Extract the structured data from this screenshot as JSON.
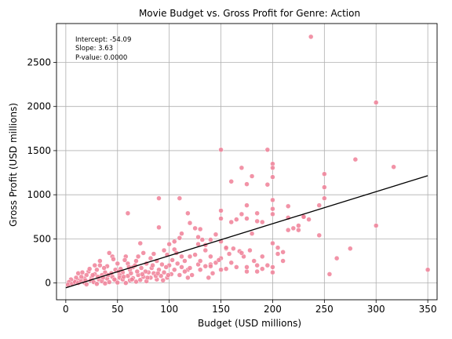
{
  "chart_data": {
    "type": "scatter",
    "title": "Movie Budget vs. Gross Profit for Genre: Action",
    "xlabel": "Budget (USD millions)",
    "ylabel": "Gross Profit (USD millions)",
    "xlim": [
      -9,
      359
    ],
    "ylim": [
      -190,
      2940
    ],
    "xticks": [
      0,
      50,
      100,
      150,
      200,
      250,
      300,
      350
    ],
    "yticks": [
      0,
      500,
      1000,
      1500,
      2000,
      2500
    ],
    "grid": true,
    "colors": {
      "points": "#f08098",
      "point_edge": "#ffffff",
      "line": "#000000",
      "grid": "#b0b0b0"
    },
    "annotations": [
      "Intercept: -54.09",
      "Slope: 3.63",
      "P-value: 0.0000"
    ],
    "regression": {
      "intercept": -54.09,
      "slope": 3.63,
      "x_range": [
        0,
        350
      ]
    },
    "points": [
      [
        237,
        2790
      ],
      [
        300,
        2045
      ],
      [
        150,
        1510
      ],
      [
        195,
        1510
      ],
      [
        200,
        1350
      ],
      [
        200,
        1305
      ],
      [
        170,
        1305
      ],
      [
        280,
        1400
      ],
      [
        317,
        1315
      ],
      [
        250,
        1235
      ],
      [
        180,
        1210
      ],
      [
        160,
        1150
      ],
      [
        175,
        1120
      ],
      [
        195,
        1115
      ],
      [
        200,
        1200
      ],
      [
        250,
        1085
      ],
      [
        250,
        960
      ],
      [
        245,
        880
      ],
      [
        215,
        870
      ],
      [
        200,
        940
      ],
      [
        230,
        750
      ],
      [
        175,
        880
      ],
      [
        185,
        790
      ],
      [
        90,
        960
      ],
      [
        110,
        960
      ],
      [
        60,
        790
      ],
      [
        150,
        820
      ],
      [
        150,
        730
      ],
      [
        160,
        690
      ],
      [
        170,
        780
      ],
      [
        175,
        730
      ],
      [
        190,
        690
      ],
      [
        180,
        560
      ],
      [
        215,
        740
      ],
      [
        220,
        620
      ],
      [
        225,
        650
      ],
      [
        235,
        720
      ],
      [
        245,
        540
      ],
      [
        200,
        840
      ],
      [
        200,
        780
      ],
      [
        185,
        700
      ],
      [
        165,
        720
      ],
      [
        150,
        470
      ],
      [
        155,
        390
      ],
      [
        145,
        550
      ],
      [
        140,
        490
      ],
      [
        130,
        610
      ],
      [
        125,
        620
      ],
      [
        118,
        790
      ],
      [
        120,
        680
      ],
      [
        100,
        440
      ],
      [
        105,
        470
      ],
      [
        110,
        510
      ],
      [
        112,
        560
      ],
      [
        128,
        520
      ],
      [
        132,
        490
      ],
      [
        135,
        430
      ],
      [
        140,
        300
      ],
      [
        150,
        280
      ],
      [
        158,
        330
      ],
      [
        162,
        390
      ],
      [
        168,
        360
      ],
      [
        172,
        300
      ],
      [
        178,
        370
      ],
      [
        182,
        250
      ],
      [
        175,
        130
      ],
      [
        190,
        300
      ],
      [
        195,
        200
      ],
      [
        200,
        180
      ],
      [
        205,
        330
      ],
      [
        210,
        350
      ],
      [
        215,
        600
      ],
      [
        225,
        600
      ],
      [
        275,
        390
      ],
      [
        300,
        650
      ],
      [
        350,
        150
      ],
      [
        255,
        100
      ],
      [
        262,
        280
      ],
      [
        230,
        750
      ],
      [
        120,
        300
      ],
      [
        115,
        250
      ],
      [
        112,
        180
      ],
      [
        118,
        150
      ],
      [
        122,
        90
      ],
      [
        130,
        150
      ],
      [
        138,
        60
      ],
      [
        145,
        230
      ],
      [
        150,
        150
      ],
      [
        128,
        210
      ],
      [
        105,
        380
      ],
      [
        98,
        320
      ],
      [
        95,
        370
      ],
      [
        90,
        630
      ],
      [
        88,
        250
      ],
      [
        85,
        330
      ],
      [
        82,
        280
      ],
      [
        78,
        220
      ],
      [
        75,
        340
      ],
      [
        72,
        450
      ],
      [
        70,
        300
      ],
      [
        68,
        250
      ],
      [
        65,
        180
      ],
      [
        62,
        150
      ],
      [
        60,
        220
      ],
      [
        58,
        300
      ],
      [
        55,
        120
      ],
      [
        52,
        90
      ],
      [
        50,
        220
      ],
      [
        48,
        150
      ],
      [
        45,
        300
      ],
      [
        42,
        340
      ],
      [
        40,
        190
      ],
      [
        38,
        120
      ],
      [
        35,
        90
      ],
      [
        33,
        200
      ],
      [
        30,
        150
      ],
      [
        28,
        100
      ],
      [
        25,
        60
      ],
      [
        22,
        130
      ],
      [
        20,
        90
      ],
      [
        18,
        50
      ],
      [
        15,
        70
      ],
      [
        12,
        30
      ],
      [
        10,
        60
      ],
      [
        8,
        20
      ],
      [
        5,
        40
      ],
      [
        3,
        10
      ],
      [
        2,
        -20
      ],
      [
        6,
        -10
      ],
      [
        9,
        10
      ],
      [
        12,
        0
      ],
      [
        15,
        20
      ],
      [
        18,
        5
      ],
      [
        20,
        -15
      ],
      [
        24,
        30
      ],
      [
        27,
        10
      ],
      [
        30,
        -10
      ],
      [
        32,
        40
      ],
      [
        35,
        20
      ],
      [
        38,
        -5
      ],
      [
        40,
        50
      ],
      [
        42,
        10
      ],
      [
        45,
        70
      ],
      [
        48,
        30
      ],
      [
        50,
        5
      ],
      [
        52,
        60
      ],
      [
        55,
        40
      ],
      [
        58,
        0
      ],
      [
        60,
        80
      ],
      [
        62,
        30
      ],
      [
        65,
        55
      ],
      [
        68,
        15
      ],
      [
        70,
        90
      ],
      [
        72,
        35
      ],
      [
        75,
        70
      ],
      [
        78,
        20
      ],
      [
        80,
        120
      ],
      [
        82,
        60
      ],
      [
        85,
        110
      ],
      [
        88,
        40
      ],
      [
        90,
        150
      ],
      [
        92,
        80
      ],
      [
        95,
        120
      ],
      [
        98,
        60
      ],
      [
        100,
        200
      ],
      [
        102,
        100
      ],
      [
        105,
        150
      ],
      [
        108,
        220
      ],
      [
        110,
        90
      ],
      [
        112,
        300
      ],
      [
        115,
        130
      ],
      [
        118,
        60
      ],
      [
        120,
        170
      ],
      [
        125,
        320
      ],
      [
        130,
        250
      ],
      [
        135,
        190
      ],
      [
        142,
        110
      ],
      [
        148,
        260
      ],
      [
        155,
        160
      ],
      [
        165,
        180
      ],
      [
        185,
        130
      ],
      [
        185,
        200
      ],
      [
        190,
        160
      ],
      [
        28,
        200
      ],
      [
        33,
        250
      ],
      [
        36,
        60
      ],
      [
        44,
        110
      ],
      [
        46,
        270
      ],
      [
        53,
        160
      ],
      [
        57,
        260
      ],
      [
        63,
        110
      ],
      [
        67,
        200
      ],
      [
        73,
        170
      ],
      [
        77,
        130
      ],
      [
        83,
        170
      ],
      [
        87,
        80
      ],
      [
        93,
        210
      ],
      [
        97,
        180
      ],
      [
        103,
        260
      ],
      [
        107,
        340
      ],
      [
        12,
        110
      ],
      [
        16,
        120
      ],
      [
        19,
        30
      ],
      [
        23,
        160
      ],
      [
        26,
        90
      ],
      [
        31,
        70
      ],
      [
        37,
        170
      ],
      [
        41,
        90
      ],
      [
        47,
        40
      ],
      [
        51,
        130
      ],
      [
        56,
        70
      ],
      [
        61,
        180
      ],
      [
        64,
        40
      ],
      [
        69,
        130
      ],
      [
        74,
        100
      ],
      [
        79,
        60
      ],
      [
        84,
        200
      ],
      [
        89,
        110
      ],
      [
        94,
        30
      ],
      [
        99,
        90
      ],
      [
        135,
        370
      ],
      [
        128,
        440
      ],
      [
        140,
        210
      ],
      [
        160,
        230
      ],
      [
        175,
        180
      ],
      [
        200,
        120
      ],
      [
        210,
        250
      ],
      [
        200,
        450
      ],
      [
        205,
        400
      ],
      [
        170,
        340
      ],
      [
        155,
        400
      ],
      [
        140,
        190
      ]
    ]
  }
}
